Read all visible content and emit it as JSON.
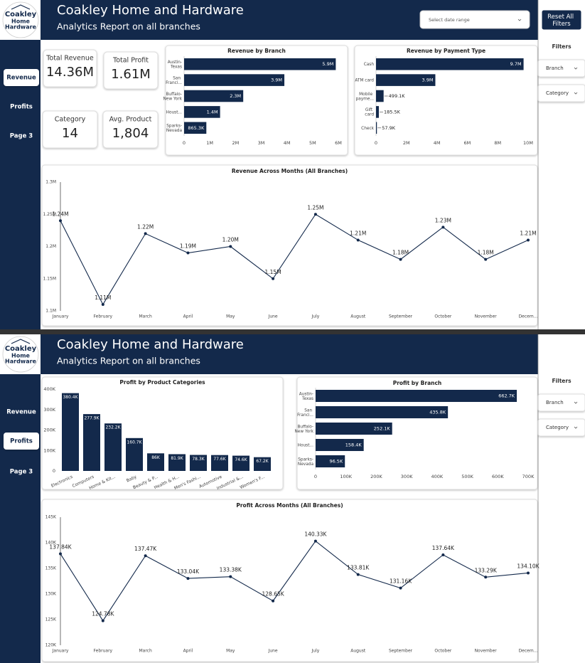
{
  "pages": [
    {
      "header": {
        "title": "Coakley Home and Hardware",
        "subtitle": "Analytics Report on all branches"
      },
      "logo": [
        "Coakley",
        "Home",
        "Hardware"
      ],
      "nav": {
        "items": [
          "Revenue",
          "Profits",
          "Page 3"
        ],
        "active": 0
      },
      "date_range": "Select date range",
      "reset_button": "Reset All Filters",
      "filters": {
        "title": "Filters",
        "items": [
          "Branch",
          "Category"
        ]
      },
      "cards": [
        {
          "label": "Total Revenue",
          "value": "14.36M"
        },
        {
          "label": "Total Profit",
          "value": "1.61M"
        },
        {
          "label": "Category",
          "value": "14"
        },
        {
          "label": "Avg. Product",
          "value": "1,804"
        }
      ]
    },
    {
      "header": {
        "title": "Coakley Home and Hardware",
        "subtitle": "Analytics Report on all branches"
      },
      "logo": [
        "Coakley",
        "Home",
        "Hardware"
      ],
      "nav": {
        "items": [
          "Revenue",
          "Profits",
          "Page 3"
        ],
        "active": 1
      },
      "filters": {
        "title": "Filters",
        "items": [
          "Branch",
          "Category"
        ]
      }
    }
  ],
  "chart_data": [
    {
      "type": "bar",
      "horizontal": true,
      "title": "Revenue by Branch",
      "color": "#13294b",
      "categories": [
        "Austin-Texas",
        "San Franci...",
        "Buffalo-New York",
        "Houst...",
        "Sparks-Nevada"
      ],
      "values": [
        5900000,
        3900000,
        2300000,
        1400000,
        865300
      ],
      "value_labels": [
        "5.9M",
        "3.9M",
        "2.3M",
        "1.4M",
        "865.3K"
      ],
      "xlim": [
        0,
        6000000
      ],
      "xticks": [
        0,
        {
          "value": 1000000,
          "label": "1M"
        },
        {
          "value": 2000000,
          "label": "2M"
        },
        {
          "value": 3000000,
          "label": "3M"
        },
        {
          "value": 4000000,
          "label": "4M"
        },
        {
          "value": 5000000,
          "label": "5M"
        },
        {
          "value": 6000000,
          "label": "6M"
        }
      ]
    },
    {
      "type": "bar",
      "horizontal": true,
      "title": "Revenue by Payment Type",
      "color": "#13294b",
      "categories": [
        "Cash",
        "ATM card",
        "Mobile payme...",
        "Gift card",
        "Check"
      ],
      "values": [
        9700000,
        3900000,
        499100,
        185500,
        57900
      ],
      "value_labels": [
        "9.7M",
        "3.9M",
        "499.1K",
        "185.5K",
        "57.9K"
      ],
      "xlim": [
        0,
        10000000
      ],
      "xticks": [
        0,
        {
          "value": 2000000,
          "label": "2M"
        },
        {
          "value": 4000000,
          "label": "4M"
        },
        {
          "value": 6000000,
          "label": "6M"
        },
        {
          "value": 8000000,
          "label": "8M"
        },
        {
          "value": 10000000,
          "label": "10M"
        }
      ]
    },
    {
      "type": "line",
      "title": "Revenue Across Months (All Branches)",
      "color": "#13294b",
      "categories": [
        "January",
        "February",
        "March",
        "April",
        "May",
        "June",
        "July",
        "August",
        "September",
        "October",
        "November",
        "Decem..."
      ],
      "values": [
        1240000,
        1110000,
        1220000,
        1190000,
        1200000,
        1150000,
        1250000,
        1210000,
        1180000,
        1230000,
        1180000,
        1210000
      ],
      "value_labels": [
        "1.24M",
        "1.11M",
        "1.22M",
        "1.19M",
        "1.20M",
        "1.15M",
        "1.25M",
        "1.21M",
        "1.18M",
        "1.23M",
        "1.18M",
        "1.21M"
      ],
      "ylim": [
        1100000,
        1300000
      ],
      "yticks": [
        {
          "value": 1100000,
          "label": "1.1M"
        },
        {
          "value": 1150000,
          "label": "1.15M"
        },
        {
          "value": 1200000,
          "label": "1.2M"
        },
        {
          "value": 1250000,
          "label": "1.25M"
        },
        {
          "value": 1300000,
          "label": "1.3M"
        }
      ]
    },
    {
      "type": "bar",
      "horizontal": false,
      "title": "Profit by Product Categories",
      "color": "#13294b",
      "categories": [
        "Electronics",
        "Computers",
        "Home & Kit...",
        "Baby",
        "Beauty & P...",
        "Health & H...",
        "Men's Fashi...",
        "Automotive",
        "Industrial &...",
        "Women's F..."
      ],
      "values": [
        380400,
        277900,
        232200,
        160700,
        86000,
        81900,
        78300,
        77600,
        74600,
        67200
      ],
      "value_labels": [
        "380.4K",
        "277.9K",
        "232.2K",
        "160.7K",
        "86K",
        "81.9K",
        "78.3K",
        "77.6K",
        "74.6K",
        "67.2K"
      ],
      "ylim": [
        0,
        400000
      ],
      "yticks": [
        0,
        {
          "value": 100000,
          "label": "100K"
        },
        {
          "value": 200000,
          "label": "200K"
        },
        {
          "value": 300000,
          "label": "300K"
        },
        {
          "value": 400000,
          "label": "400K"
        }
      ]
    },
    {
      "type": "bar",
      "horizontal": true,
      "title": "Profit by Branch",
      "color": "#13294b",
      "categories": [
        "Austin-Texas",
        "San Franci...",
        "Buffalo-New York",
        "Houst...",
        "Sparks-Nevada"
      ],
      "values": [
        662700,
        435800,
        252100,
        158400,
        96500
      ],
      "value_labels": [
        "662.7K",
        "435.8K",
        "252.1K",
        "158.4K",
        "96.5K"
      ],
      "xlim": [
        0,
        700000
      ],
      "xticks": [
        0,
        {
          "value": 100000,
          "label": "100K"
        },
        {
          "value": 200000,
          "label": "200K"
        },
        {
          "value": 300000,
          "label": "300K"
        },
        {
          "value": 400000,
          "label": "400K"
        },
        {
          "value": 500000,
          "label": "500K"
        },
        {
          "value": 600000,
          "label": "600K"
        },
        {
          "value": 700000,
          "label": "700K"
        }
      ]
    },
    {
      "type": "line",
      "title": "Profit Across Months (All Branches)",
      "color": "#13294b",
      "categories": [
        "January",
        "February",
        "March",
        "April",
        "May",
        "June",
        "July",
        "August",
        "September",
        "October",
        "November",
        "Decem..."
      ],
      "values": [
        137840,
        124780,
        137470,
        133040,
        133380,
        128650,
        140330,
        133810,
        131160,
        137640,
        133290,
        134100
      ],
      "value_labels": [
        "137.84K",
        "124.78K",
        "137.47K",
        "133.04K",
        "133.38K",
        "128.65K",
        "140.33K",
        "133.81K",
        "131.16K",
        "137.64K",
        "133.29K",
        "134.10K"
      ],
      "ylim": [
        120000,
        145000
      ],
      "yticks": [
        {
          "value": 120000,
          "label": "120K"
        },
        {
          "value": 125000,
          "label": "125K"
        },
        {
          "value": 130000,
          "label": "130K"
        },
        {
          "value": 135000,
          "label": "135K"
        },
        {
          "value": 140000,
          "label": "140K"
        },
        {
          "value": 145000,
          "label": "145K"
        }
      ]
    }
  ]
}
